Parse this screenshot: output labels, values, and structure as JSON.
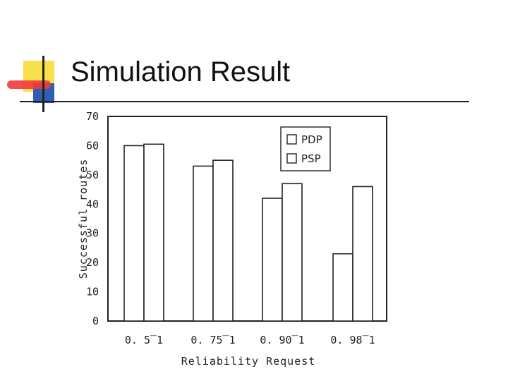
{
  "title": "Simulation Result",
  "colors": {
    "accent_yellow": "#f7e04a",
    "accent_blue": "#2f5fb4",
    "accent_red": "#ee3b3b"
  },
  "chart_data": {
    "type": "bar",
    "xlabel": "Reliability Request",
    "ylabel": "Successful routes",
    "categories": [
      "0. 5‾1",
      "0. 75‾1",
      "0. 90‾1",
      "0. 98‾1"
    ],
    "series": [
      {
        "name": "PDP",
        "values": [
          60,
          53,
          42,
          23
        ]
      },
      {
        "name": "PSP",
        "values": [
          60.5,
          55,
          47,
          46
        ]
      }
    ],
    "ylim": [
      0,
      70
    ],
    "yticks": [
      0,
      10,
      20,
      30,
      40,
      50,
      60,
      70
    ],
    "legend_position": "top-right",
    "grid": false
  }
}
